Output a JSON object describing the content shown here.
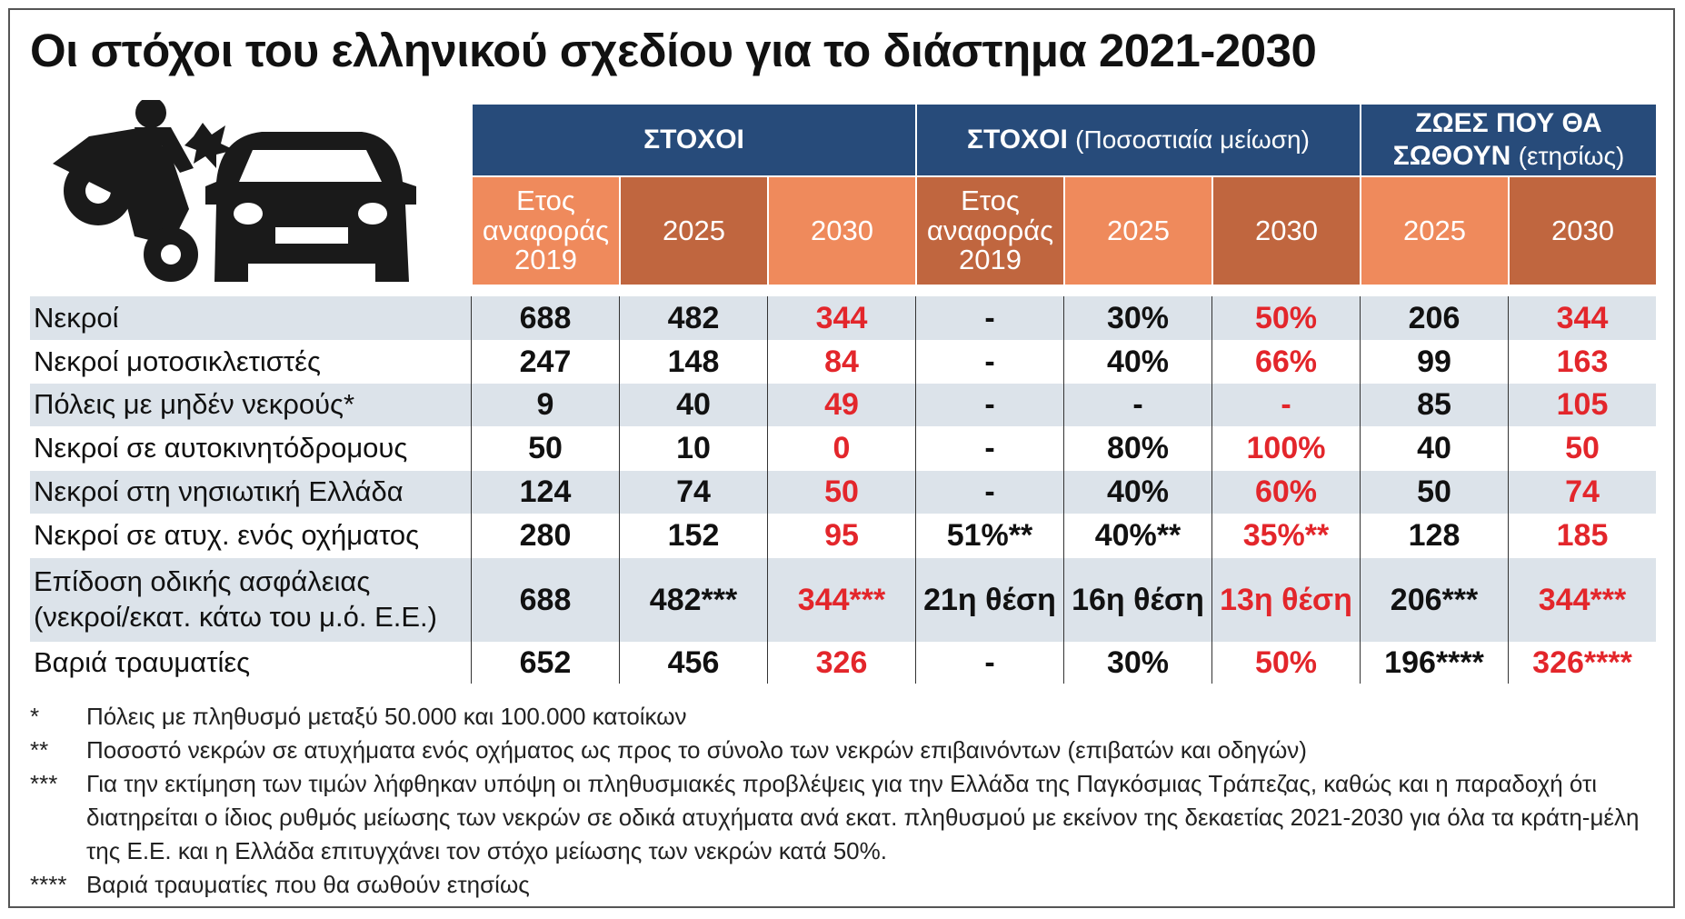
{
  "title": "Οι στόχοι του ελληνικού σχεδίου για το διάστημα 2021-2030",
  "table": {
    "groups": [
      {
        "title": "ΣΤΟΧΟΙ"
      },
      {
        "title": "ΣΤΟΧΟΙ",
        "note": "(Ποσοστιαία μείωση)"
      },
      {
        "title": "ΖΩΕΣ ΠΟΥ ΘΑ ΣΩΘΟΥΝ",
        "note": "(ετησίως)"
      }
    ],
    "columns": [
      "Ετος αναφοράς 2019",
      "2025",
      "2030",
      "Ετος αναφοράς 2019",
      "2025",
      "2030",
      "2025",
      "2030"
    ],
    "rows": [
      [
        "Νεκροί",
        "688",
        "482",
        "344",
        "-",
        "30%",
        "50%",
        "206",
        "344"
      ],
      [
        "Νεκροί μοτοσικλετιστές",
        "247",
        "148",
        "84",
        "-",
        "40%",
        "66%",
        "99",
        "163"
      ],
      [
        "Πόλεις με μηδέν νεκρούς*",
        "9",
        "40",
        "49",
        "-",
        "-",
        "-",
        "85",
        "105"
      ],
      [
        "Νεκροί σε αυτοκινητόδρομους",
        "50",
        "10",
        "0",
        "-",
        "80%",
        "100%",
        "40",
        "50"
      ],
      [
        "Νεκροί στη νησιωτική Ελλάδα",
        "124",
        "74",
        "50",
        "-",
        "40%",
        "60%",
        "50",
        "74"
      ],
      [
        "Νεκροί σε ατυχ. ενός οχήματος",
        "280",
        "152",
        "95",
        "51%**",
        "40%**",
        "35%**",
        "128",
        "185"
      ],
      [
        "Επίδοση οδικής ασφάλειας\n(νεκροί/εκατ. κάτω του μ.ό. Ε.Ε.)",
        "688",
        "482***",
        "344***",
        "21η θέση",
        "16η θέση",
        "13η θέση",
        "206***",
        "344***"
      ],
      [
        "Βαριά τραυματίες",
        "652",
        "456",
        "326",
        "-",
        "30%",
        "50%",
        "196****",
        "326****"
      ]
    ]
  },
  "footnotes": [
    {
      "mark": "*",
      "text": "Πόλεις με πληθυσμό μεταξύ 50.000 και 100.000 κατοίκων"
    },
    {
      "mark": "**",
      "text": "Ποσοστό νεκρών σε ατυχήματα ενός οχήματος ως προς το σύνολο των νεκρών επιβαινόντων (επιβατών και οδηγών)"
    },
    {
      "mark": "***",
      "text": "Για την εκτίμηση των τιμών λήφθηκαν υπόψη οι πληθυσμιακές προβλέψεις για την Ελλάδα της Παγκόσμιας Τράπεζας, καθώς και η παραδοχή ότι διατηρείται ο ίδιος ρυθμός μείωσης των νεκρών σε οδικά ατυχήματα ανά εκατ. πληθυσμού με εκείνον της δεκαετίας 2021-2030 για όλα τα κράτη-μέλη της Ε.Ε. και η Ελλάδα επιτυγχάνει τον στόχο μείωσης των νεκρών κατά 50%."
    },
    {
      "mark": "****",
      "text": "Βαριά τραυματίες που θα σωθούν ετησίως"
    }
  ]
}
